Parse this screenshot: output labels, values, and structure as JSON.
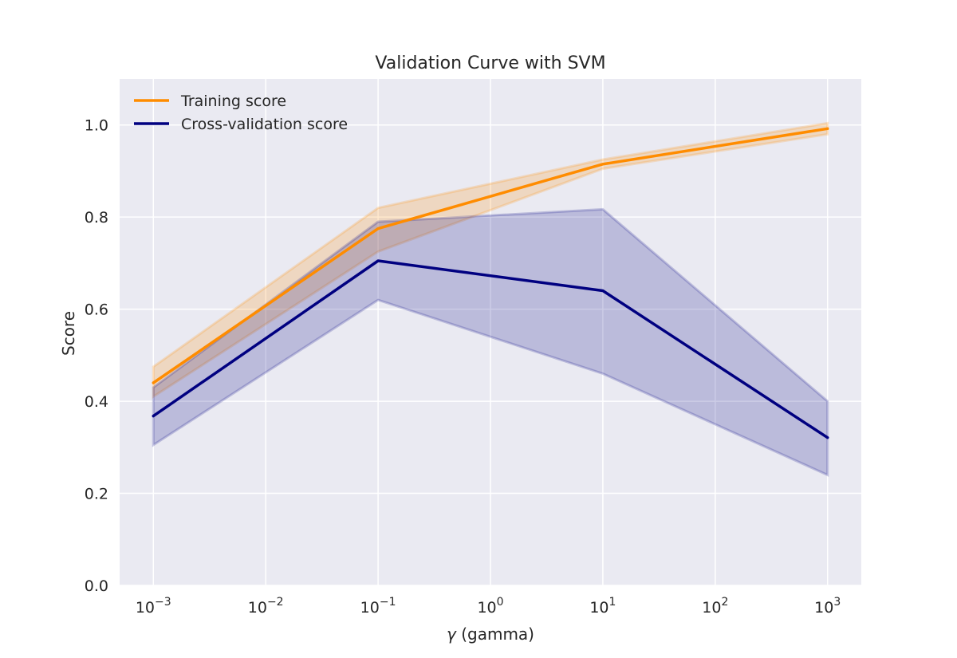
{
  "chart_data": {
    "type": "line",
    "title": "Validation Curve with SVM",
    "xlabel_symbol": "γ",
    "xlabel_text": "(gamma)",
    "ylabel": "Score",
    "x_scale": "log",
    "x_tick_base": "10",
    "x_tick_exponents": [
      "−3",
      "−2",
      "−1",
      "0",
      "1",
      "2",
      "3"
    ],
    "xlim_log10": [
      -3.3,
      3.3
    ],
    "ylim": [
      0.0,
      1.1
    ],
    "y_ticks": [
      "0.0",
      "0.2",
      "0.4",
      "0.6",
      "0.8",
      "1.0"
    ],
    "y_tick_values": [
      0.0,
      0.2,
      0.4,
      0.6,
      0.8,
      1.0
    ],
    "grid": true,
    "legend_position": "top-left",
    "x": [
      0.001,
      0.1,
      10,
      1000
    ],
    "series": [
      {
        "name": "Training score",
        "color": "#ff8c00",
        "mean": [
          0.44,
          0.775,
          0.915,
          0.992
        ],
        "band_low": [
          0.41,
          0.725,
          0.905,
          0.98
        ],
        "band_high": [
          0.475,
          0.82,
          0.925,
          1.004
        ]
      },
      {
        "name": "Cross-validation score",
        "color": "#000080",
        "mean": [
          0.368,
          0.705,
          0.64,
          0.321
        ],
        "band_low": [
          0.305,
          0.62,
          0.46,
          0.24
        ],
        "band_high": [
          0.43,
          0.79,
          0.817,
          0.4
        ]
      }
    ]
  }
}
